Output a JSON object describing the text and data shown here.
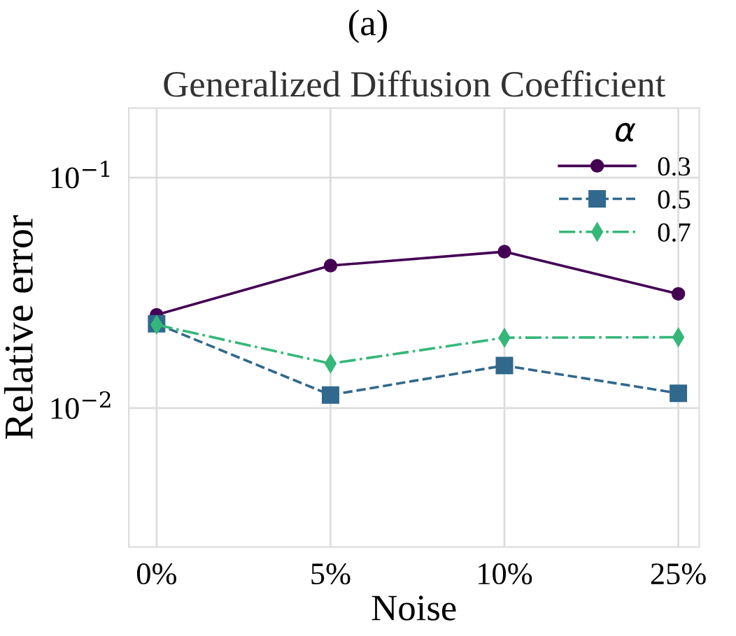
{
  "chart_data": {
    "type": "line",
    "title": "Generalized Diffusion Coefficient",
    "xlabel": "Noise",
    "ylabel": "Relative error",
    "legend_title": "α",
    "annotations": [
      "(a)"
    ],
    "categories": [
      "0%",
      "5%",
      "10%",
      "25%"
    ],
    "series": [
      {
        "name": "0.3",
        "color": "#440154",
        "marker": "circle",
        "line_style": "solid",
        "values": [
          0.0254,
          0.0415,
          0.0477,
          0.0313
        ]
      },
      {
        "name": "0.5",
        "color": "#31688e",
        "marker": "square",
        "line_style": "dashed",
        "values": [
          0.0232,
          0.0114,
          0.0153,
          0.0116
        ]
      },
      {
        "name": "0.7",
        "color": "#35b779",
        "marker": "diamond",
        "line_style": "dashdot",
        "values": [
          0.023,
          0.0156,
          0.0202,
          0.0203
        ]
      }
    ],
    "log": "y",
    "ylim": [
      0.0025,
      0.2
    ],
    "yticks": [
      {
        "value": 0.01,
        "label": "10$^{−2}$"
      },
      {
        "value": 0.1,
        "label": "10$^{−1}$"
      }
    ],
    "grid": true,
    "legend": "top right"
  }
}
